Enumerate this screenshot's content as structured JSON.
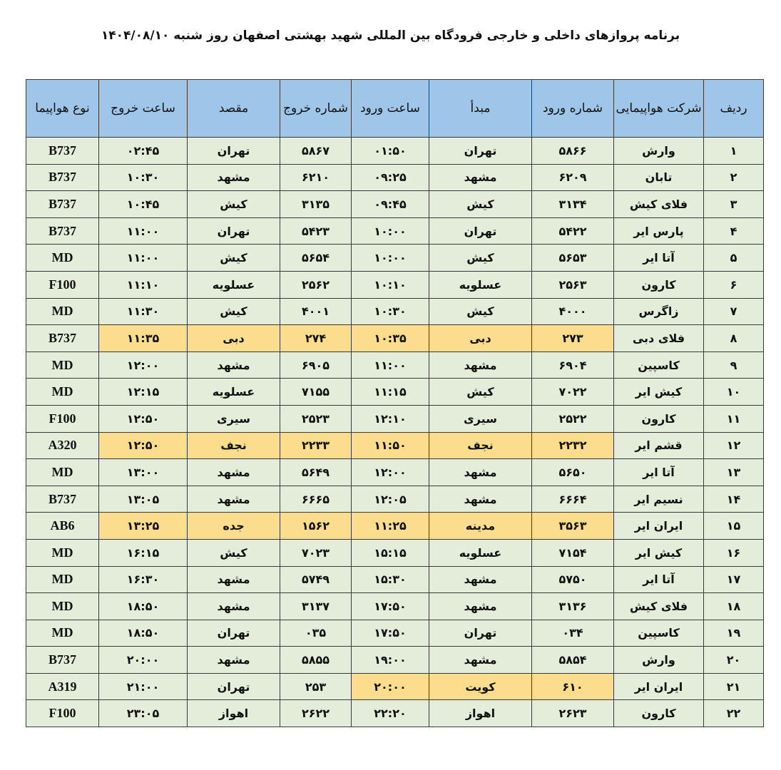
{
  "title": "برنامه پروازهای داخلی و خارجی فرودگاه بین المللی شهید بهشتی اصفهان روز شنبه ۱۴۰۴/۰۸/۱۰",
  "colors": {
    "header_bg": "#9fc5e8",
    "cell_bg": "#e3edda",
    "highlight_bg": "#fcdd8e"
  },
  "columns": [
    "ردیف",
    "شرکت هواپیمایی",
    "شماره ورود",
    "مبدأ",
    "ساعت ورود",
    "شماره خروج",
    "مقصد",
    "ساعت خروج",
    "نوع هواپیما"
  ],
  "rows": [
    {
      "cells": [
        "۱",
        "وارش",
        "۵۸۶۶",
        "تهران",
        "۰۱:۵۰",
        "۵۸۶۷",
        "تهران",
        "۰۲:۴۵",
        "B737"
      ],
      "highlight": []
    },
    {
      "cells": [
        "۲",
        "تابان",
        "۶۲۰۹",
        "مشهد",
        "۰۹:۲۵",
        "۶۲۱۰",
        "مشهد",
        "۱۰:۳۰",
        "B737"
      ],
      "highlight": []
    },
    {
      "cells": [
        "۳",
        "فلای کیش",
        "۳۱۳۴",
        "کیش",
        "۰۹:۴۵",
        "۳۱۳۵",
        "کیش",
        "۱۰:۴۵",
        "B737"
      ],
      "highlight": []
    },
    {
      "cells": [
        "۴",
        "پارس ایر",
        "۵۴۲۲",
        "تهران",
        "۱۰:۰۰",
        "۵۴۲۳",
        "تهران",
        "۱۱:۰۰",
        "B737"
      ],
      "highlight": []
    },
    {
      "cells": [
        "۵",
        "آتا ایر",
        "۵۶۵۳",
        "کیش",
        "۱۰:۰۰",
        "۵۶۵۴",
        "کیش",
        "۱۱:۰۰",
        "MD"
      ],
      "highlight": []
    },
    {
      "cells": [
        "۶",
        "کارون",
        "۲۵۶۳",
        "عسلویه",
        "۱۰:۱۰",
        "۲۵۶۲",
        "عسلویه",
        "۱۱:۱۰",
        "F100"
      ],
      "highlight": []
    },
    {
      "cells": [
        "۷",
        "زاگرس",
        "۴۰۰۰",
        "کیش",
        "۱۰:۳۰",
        "۴۰۰۱",
        "کیش",
        "۱۱:۳۰",
        "MD"
      ],
      "highlight": []
    },
    {
      "cells": [
        "۸",
        "فلای دبی",
        "۲۷۳",
        "دبی",
        "۱۰:۳۵",
        "۲۷۴",
        "دبی",
        "۱۱:۳۵",
        "B737"
      ],
      "highlight": [
        2,
        3,
        4,
        5,
        6,
        7
      ]
    },
    {
      "cells": [
        "۹",
        "کاسپین",
        "۶۹۰۴",
        "مشهد",
        "۱۱:۰۰",
        "۶۹۰۵",
        "مشهد",
        "۱۲:۰۰",
        "MD"
      ],
      "highlight": []
    },
    {
      "cells": [
        "۱۰",
        "کیش ایر",
        "۷۰۲۲",
        "کیش",
        "۱۱:۱۵",
        "۷۱۵۵",
        "عسلویه",
        "۱۲:۱۵",
        "MD"
      ],
      "highlight": []
    },
    {
      "cells": [
        "۱۱",
        "کارون",
        "۲۵۲۲",
        "سیری",
        "۱۲:۱۰",
        "۲۵۲۳",
        "سیری",
        "۱۲:۵۰",
        "F100"
      ],
      "highlight": []
    },
    {
      "cells": [
        "۱۲",
        "قشم ایر",
        "۲۲۳۲",
        "نجف",
        "۱۱:۵۰",
        "۲۲۳۳",
        "نجف",
        "۱۲:۵۰",
        "A320"
      ],
      "highlight": [
        2,
        3,
        4,
        5,
        6,
        7
      ]
    },
    {
      "cells": [
        "۱۳",
        "آتا ایر",
        "۵۶۵۰",
        "مشهد",
        "۱۲:۰۰",
        "۵۶۴۹",
        "مشهد",
        "۱۳:۰۰",
        "MD"
      ],
      "highlight": []
    },
    {
      "cells": [
        "۱۴",
        "نسیم ایر",
        "۶۶۶۴",
        "مشهد",
        "۱۲:۰۵",
        "۶۶۶۵",
        "مشهد",
        "۱۳:۰۵",
        "B737"
      ],
      "highlight": []
    },
    {
      "cells": [
        "۱۵",
        "ایران ایر",
        "۳۵۶۳",
        "مدینه",
        "۱۱:۲۵",
        "۱۵۶۲",
        "جده",
        "۱۳:۲۵",
        "AB6"
      ],
      "highlight": [
        2,
        3,
        4,
        5,
        6,
        7
      ]
    },
    {
      "cells": [
        "۱۶",
        "کیش ایر",
        "۷۱۵۴",
        "عسلویه",
        "۱۵:۱۵",
        "۷۰۲۳",
        "کیش",
        "۱۶:۱۵",
        "MD"
      ],
      "highlight": []
    },
    {
      "cells": [
        "۱۷",
        "آتا ایر",
        "۵۷۵۰",
        "مشهد",
        "۱۵:۳۰",
        "۵۷۴۹",
        "مشهد",
        "۱۶:۳۰",
        "MD"
      ],
      "highlight": []
    },
    {
      "cells": [
        "۱۸",
        "فلای کیش",
        "۳۱۳۶",
        "مشهد",
        "۱۷:۵۰",
        "۳۱۳۷",
        "مشهد",
        "۱۸:۵۰",
        "MD"
      ],
      "highlight": []
    },
    {
      "cells": [
        "۱۹",
        "کاسپین",
        "۰۳۴",
        "تهران",
        "۱۷:۵۰",
        "۰۳۵",
        "تهران",
        "۱۸:۵۰",
        "MD"
      ],
      "highlight": []
    },
    {
      "cells": [
        "۲۰",
        "وارش",
        "۵۸۵۴",
        "مشهد",
        "۱۹:۰۰",
        "۵۸۵۵",
        "مشهد",
        "۲۰:۰۰",
        "B737"
      ],
      "highlight": []
    },
    {
      "cells": [
        "۲۱",
        "ایران ایر",
        "۶۱۰",
        "کویت",
        "۲۰:۰۰",
        "۲۵۳",
        "تهران",
        "۲۱:۰۰",
        "A319"
      ],
      "highlight": [
        2,
        3,
        4
      ]
    },
    {
      "cells": [
        "۲۲",
        "کارون",
        "۲۶۲۳",
        "اهواز",
        "۲۲:۲۰",
        "۲۶۲۲",
        "اهواز",
        "۲۳:۰۵",
        "F100"
      ],
      "highlight": []
    }
  ]
}
